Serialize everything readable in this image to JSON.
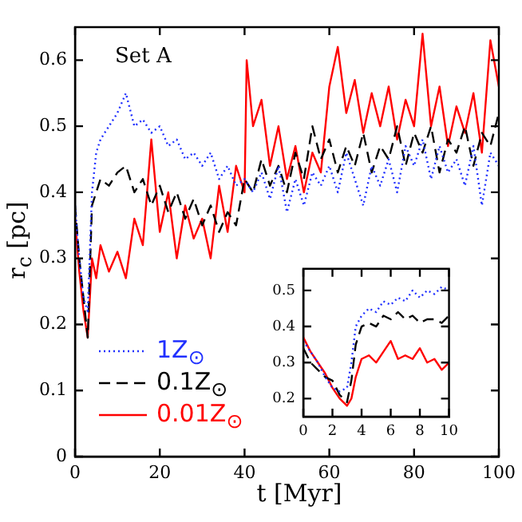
{
  "chart_data": [
    {
      "type": "line",
      "xlabel": "t [Myr]",
      "ylabel": "r$_{c}$ [pc]",
      "annotations": [
        "Set A"
      ],
      "xlim": [
        0,
        100
      ],
      "xticks": [
        0,
        20,
        40,
        60,
        80,
        100
      ],
      "ylim": [
        0,
        0.65
      ],
      "yticks": [
        0,
        0.1,
        0.2,
        0.3,
        0.4,
        0.5,
        0.6
      ],
      "legend": "bottom left",
      "series": [
        {
          "name": "1Z$_{⊙}$",
          "color": "#2030ff",
          "line_style": "dotted",
          "x": [
            0,
            1,
            2,
            3,
            4,
            5,
            6,
            8,
            10,
            12,
            14,
            16,
            18,
            20,
            22,
            24,
            26,
            28,
            30,
            32,
            34,
            36,
            38,
            40,
            42,
            44,
            46,
            48,
            50,
            52,
            54,
            56,
            58,
            60,
            62,
            64,
            66,
            68,
            70,
            72,
            74,
            76,
            78,
            80,
            82,
            84,
            86,
            88,
            90,
            92,
            94,
            96,
            98,
            100
          ],
          "values": [
            0.38,
            0.3,
            0.24,
            0.22,
            0.4,
            0.46,
            0.48,
            0.5,
            0.52,
            0.55,
            0.5,
            0.51,
            0.49,
            0.5,
            0.47,
            0.48,
            0.45,
            0.46,
            0.44,
            0.46,
            0.42,
            0.44,
            0.41,
            0.42,
            0.4,
            0.43,
            0.39,
            0.44,
            0.37,
            0.42,
            0.38,
            0.43,
            0.41,
            0.44,
            0.4,
            0.46,
            0.42,
            0.38,
            0.44,
            0.41,
            0.45,
            0.4,
            0.47,
            0.44,
            0.48,
            0.42,
            0.47,
            0.43,
            0.45,
            0.41,
            0.47,
            0.38,
            0.46,
            0.44
          ]
        },
        {
          "name": "0.1Z$_{⊙}$",
          "color": "#000000",
          "line_style": "dashed",
          "x": [
            0,
            1,
            2,
            3,
            4,
            5,
            6,
            8,
            10,
            12,
            14,
            16,
            18,
            20,
            22,
            24,
            26,
            28,
            30,
            32,
            34,
            36,
            38,
            40,
            42,
            44,
            46,
            48,
            50,
            52,
            54,
            56,
            58,
            60,
            62,
            64,
            66,
            68,
            70,
            72,
            74,
            76,
            78,
            80,
            82,
            84,
            86,
            88,
            90,
            92,
            94,
            96,
            98,
            100
          ],
          "values": [
            0.38,
            0.3,
            0.24,
            0.18,
            0.38,
            0.4,
            0.42,
            0.41,
            0.43,
            0.44,
            0.4,
            0.42,
            0.38,
            0.41,
            0.37,
            0.4,
            0.36,
            0.39,
            0.35,
            0.38,
            0.34,
            0.37,
            0.35,
            0.42,
            0.4,
            0.45,
            0.41,
            0.44,
            0.4,
            0.46,
            0.42,
            0.5,
            0.45,
            0.48,
            0.43,
            0.47,
            0.44,
            0.49,
            0.43,
            0.47,
            0.45,
            0.5,
            0.44,
            0.49,
            0.46,
            0.5,
            0.43,
            0.48,
            0.46,
            0.5,
            0.44,
            0.49,
            0.47,
            0.52
          ]
        },
        {
          "name": "0.01Z$_{⊙}$",
          "color": "#ff0000",
          "line_style": "solid",
          "x": [
            0,
            1,
            2,
            3,
            4,
            5,
            6,
            8,
            10,
            12,
            14,
            16,
            18,
            20,
            22,
            24,
            26,
            28,
            30,
            32,
            34,
            36,
            38,
            40,
            40.5,
            42,
            44,
            46,
            48,
            50,
            52,
            54,
            56,
            58,
            60,
            62,
            64,
            66,
            68,
            70,
            72,
            74,
            76,
            78,
            80,
            82,
            84,
            86,
            88,
            90,
            92,
            94,
            96,
            98,
            100
          ],
          "values": [
            0.36,
            0.28,
            0.22,
            0.18,
            0.3,
            0.27,
            0.32,
            0.28,
            0.31,
            0.27,
            0.36,
            0.32,
            0.48,
            0.34,
            0.4,
            0.3,
            0.38,
            0.33,
            0.36,
            0.3,
            0.41,
            0.34,
            0.44,
            0.4,
            0.6,
            0.5,
            0.54,
            0.44,
            0.5,
            0.42,
            0.47,
            0.4,
            0.46,
            0.43,
            0.56,
            0.62,
            0.52,
            0.57,
            0.49,
            0.55,
            0.5,
            0.56,
            0.48,
            0.54,
            0.5,
            0.64,
            0.5,
            0.56,
            0.47,
            0.53,
            0.49,
            0.55,
            0.46,
            0.63,
            0.56
          ]
        }
      ]
    },
    {
      "type": "line",
      "xlim": [
        0,
        10
      ],
      "xticks": [
        0,
        2,
        4,
        6,
        8,
        10
      ],
      "ylim": [
        0.15,
        0.56
      ],
      "yticks": [
        0.2,
        0.3,
        0.4,
        0.5
      ],
      "series": [
        {
          "color": "#2030ff",
          "line_style": "dotted",
          "x": [
            0,
            0.5,
            1,
            1.5,
            2,
            2.5,
            3,
            3.3,
            3.6,
            4,
            4.5,
            5,
            5.5,
            6,
            6.5,
            7,
            7.5,
            8,
            8.5,
            9,
            9.5,
            10
          ],
          "values": [
            0.36,
            0.33,
            0.3,
            0.26,
            0.23,
            0.22,
            0.23,
            0.3,
            0.4,
            0.43,
            0.45,
            0.44,
            0.47,
            0.46,
            0.48,
            0.47,
            0.5,
            0.48,
            0.5,
            0.49,
            0.51,
            0.5
          ]
        },
        {
          "color": "#000000",
          "line_style": "dashed",
          "x": [
            0,
            0.5,
            1,
            1.5,
            2,
            2.5,
            3,
            3.3,
            3.6,
            4,
            4.5,
            5,
            5.5,
            6,
            6.5,
            7,
            7.5,
            8,
            8.5,
            9,
            9.5,
            10
          ],
          "values": [
            0.34,
            0.3,
            0.28,
            0.26,
            0.25,
            0.21,
            0.19,
            0.25,
            0.35,
            0.4,
            0.41,
            0.4,
            0.43,
            0.42,
            0.44,
            0.42,
            0.43,
            0.41,
            0.42,
            0.42,
            0.41,
            0.43
          ]
        },
        {
          "color": "#ff0000",
          "line_style": "solid",
          "x": [
            0,
            0.5,
            1,
            1.5,
            2,
            2.5,
            3,
            3.3,
            3.6,
            4,
            4.5,
            5,
            5.5,
            6,
            6.5,
            7,
            7.5,
            8,
            8.5,
            9,
            9.5,
            10
          ],
          "values": [
            0.37,
            0.33,
            0.3,
            0.27,
            0.23,
            0.2,
            0.18,
            0.2,
            0.26,
            0.31,
            0.32,
            0.3,
            0.33,
            0.36,
            0.31,
            0.32,
            0.31,
            0.34,
            0.3,
            0.31,
            0.28,
            0.3
          ]
        }
      ]
    }
  ]
}
